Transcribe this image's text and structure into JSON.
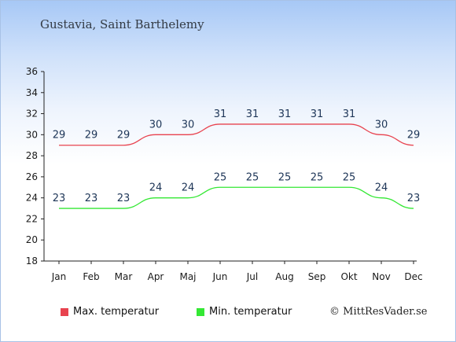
{
  "title": "Gustavia, Saint Barthelemy",
  "copyright": "© MittResVader.se",
  "chart_data": {
    "type": "line",
    "categories": [
      "Jan",
      "Feb",
      "Mar",
      "Apr",
      "Maj",
      "Jun",
      "Jul",
      "Aug",
      "Sep",
      "Okt",
      "Nov",
      "Dec"
    ],
    "ylim": [
      18,
      36
    ],
    "yticks": [
      18,
      20,
      22,
      24,
      26,
      28,
      30,
      32,
      34,
      36
    ],
    "grid": false,
    "legend_position": "bottom",
    "series": [
      {
        "name": "Max. temperatur",
        "color": "#e8434f",
        "values": [
          29,
          29,
          29,
          30,
          30,
          31,
          31,
          31,
          31,
          31,
          30,
          29
        ]
      },
      {
        "name": "Min. temperatur",
        "color": "#34e834",
        "values": [
          23,
          23,
          23,
          24,
          24,
          25,
          25,
          25,
          25,
          25,
          24,
          23
        ]
      }
    ]
  }
}
